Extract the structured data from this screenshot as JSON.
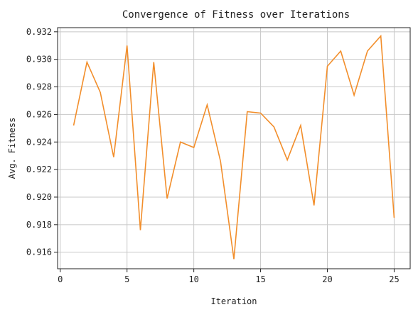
{
  "chart_data": {
    "type": "line",
    "title": "Convergence of Fitness over Iterations",
    "xlabel": "Iteration",
    "ylabel": "Avg. Fitness",
    "xlim": [
      -0.2,
      26.2
    ],
    "ylim": [
      0.9148,
      0.9323
    ],
    "xticks": [
      0,
      5,
      10,
      15,
      20,
      25
    ],
    "yticks": [
      0.916,
      0.918,
      0.92,
      0.922,
      0.924,
      0.926,
      0.928,
      0.93,
      0.932
    ],
    "grid": true,
    "series": [
      {
        "color": "#f28e2b",
        "x": [
          1,
          2,
          3,
          4,
          5,
          6,
          7,
          8,
          9,
          10,
          11,
          12,
          13,
          14,
          15,
          16,
          17,
          18,
          19,
          20,
          21,
          22,
          23,
          24,
          25
        ],
        "y": [
          0.9252,
          0.9298,
          0.9276,
          0.9229,
          0.931,
          0.9176,
          0.9298,
          0.9199,
          0.924,
          0.9236,
          0.9267,
          0.9226,
          0.9155,
          0.9262,
          0.9261,
          0.9251,
          0.9227,
          0.9252,
          0.9194,
          0.9295,
          0.9306,
          0.9274,
          0.9306,
          0.9317,
          0.9185
        ]
      }
    ]
  }
}
